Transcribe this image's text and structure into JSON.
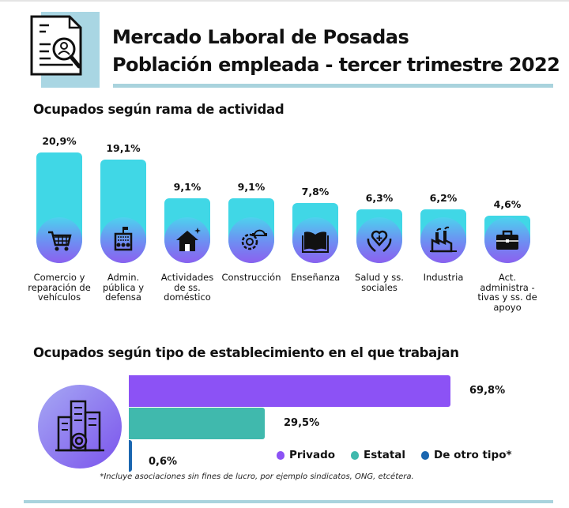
{
  "header": {
    "title": "Mercado Laboral de Posadas",
    "subtitle": "Población empleada - tercer trimestre 2022"
  },
  "colors": {
    "bar": "#40d7e6",
    "privado": "#8c52f5",
    "estatal": "#40b9ad",
    "otro": "#1a66b0",
    "accent_line": "#a9d3dd"
  },
  "chart_data": [
    {
      "type": "bar",
      "title": "Ocupados según rama de actividad",
      "categories": [
        "Comercio y reparación de vehículos",
        "Admin. pública y defensa",
        "Actividades de ss. doméstico",
        "Construcción",
        "Enseñanza",
        "Salud y ss. sociales",
        "Industria",
        "Act. administra -tivas y ss. de apoyo"
      ],
      "values": [
        20.9,
        19.1,
        9.1,
        9.1,
        7.8,
        6.3,
        6.2,
        4.6
      ],
      "labels": [
        "20,9%",
        "19,1%",
        "9,1%",
        "9,1%",
        "7,8%",
        "6,3%",
        "6,2%",
        "4,6%"
      ],
      "icons": [
        "shopping-cart-icon",
        "government-building-icon",
        "house-icon",
        "gear-helmet-icon",
        "book-icon",
        "heart-hands-icon",
        "factory-icon",
        "briefcase-icon"
      ]
    },
    {
      "type": "bar",
      "orientation": "horizontal",
      "title": "Ocupados según tipo de establecimiento en el que trabajan",
      "series": [
        {
          "name": "Privado",
          "value": 69.8,
          "label": "69,8%"
        },
        {
          "name": "Estatal",
          "value": 29.5,
          "label": "29,5%"
        },
        {
          "name": "De otro tipo*",
          "value": 0.6,
          "label": "0,6%"
        }
      ],
      "footnote": "*Incluye asociaciones sin fines de lucro, por ejemplo sindicatos, ONG, etcétera."
    }
  ]
}
